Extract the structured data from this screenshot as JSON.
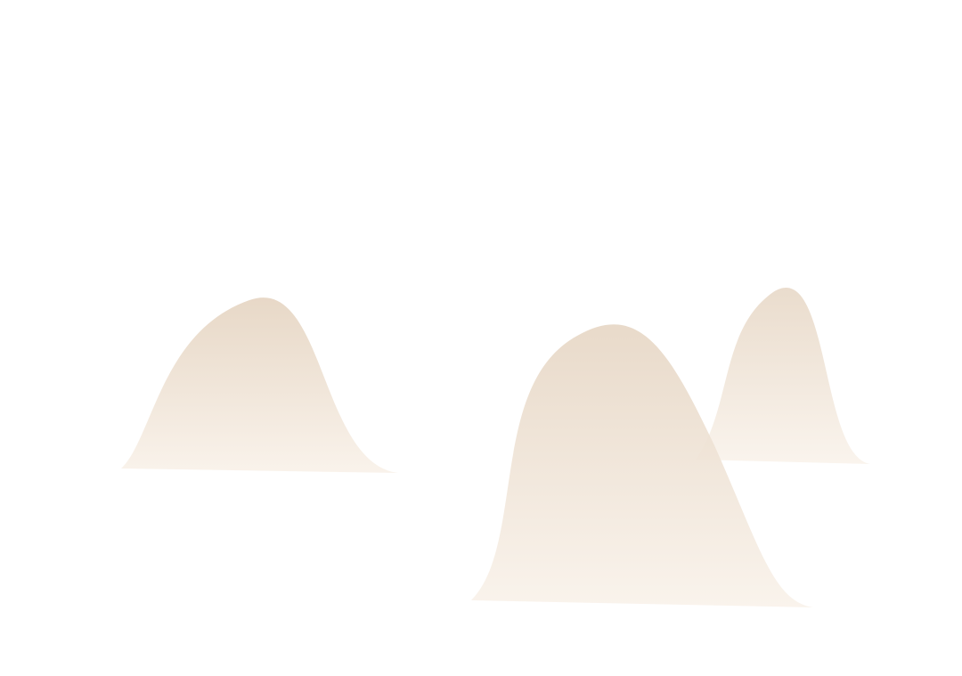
{
  "colors": {
    "background": "#ffffff",
    "hill_top": "#e6d6c4",
    "hill_bottom": "#f9f2ea"
  },
  "shapes": [
    "hill",
    "hill",
    "hill"
  ]
}
